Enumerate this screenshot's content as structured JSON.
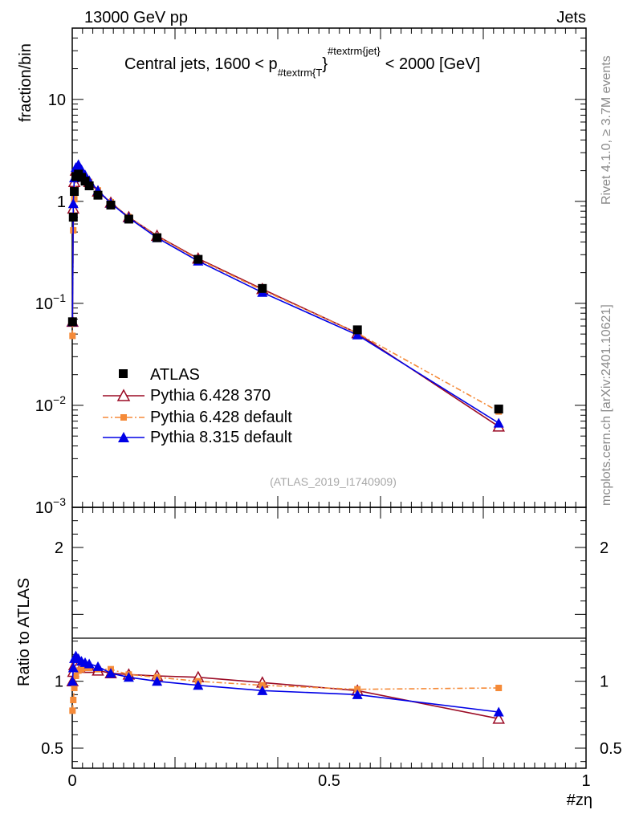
{
  "header": {
    "energy_label": "13000 GeV pp",
    "category_label": "Jets",
    "side_rivet": "Rivet 4.1.0, ≥ 3.7M events",
    "side_mcplots": "mcplots.cern.ch [arXiv:2401.10621]"
  },
  "chart_data": [
    {
      "type": "line",
      "panel": "main",
      "title": "Central jets, 1600 < p_{#textrm{T}}^{#textrm{jet}} < 2000 [GeV]",
      "title_parts": {
        "prefix": "Central jets, 1600 < p",
        "sub": "#textrm{T",
        "brace": "}",
        "sup": "#textrm{jet}",
        "suffix": "< 2000 [GeV]"
      },
      "ylabel": "fraction/bin",
      "xlabel": "#zη",
      "yscale": "log",
      "ylim": [
        0.001,
        50
      ],
      "xlim": [
        0,
        1
      ],
      "y_ticks": [
        {
          "value": 10,
          "label": "10"
        },
        {
          "value": 1,
          "label": "1"
        },
        {
          "value": 0.1,
          "label": "10^{−1}",
          "base": "10",
          "exp": "−1"
        },
        {
          "value": 0.01,
          "label": "10^{−2}",
          "base": "10",
          "exp": "−2"
        },
        {
          "value": 0.001,
          "label": "10^{−3}",
          "base": "10",
          "exp": "−3"
        }
      ],
      "watermark": "(ATLAS_2019_I1740909)",
      "legend_position": "lower-left",
      "series": [
        {
          "name": "ATLAS",
          "color": "#000000",
          "marker": "square",
          "x": [
            0.0005,
            0.002,
            0.004,
            0.007,
            0.012,
            0.018,
            0.025,
            0.033,
            0.05,
            0.075,
            0.11,
            0.165,
            0.245,
            0.37,
            0.555,
            0.83
          ],
          "y": [
            0.066,
            0.7,
            1.25,
            1.75,
            1.85,
            1.72,
            1.58,
            1.42,
            1.15,
            0.92,
            0.67,
            0.44,
            0.27,
            0.14,
            0.055,
            0.0092
          ]
        },
        {
          "name": "Pythia 6.428 370",
          "color": "#9b0b25",
          "marker": "triangle-open",
          "x": [
            0.0005,
            0.002,
            0.004,
            0.007,
            0.012,
            0.018,
            0.025,
            0.033,
            0.05,
            0.075,
            0.11,
            0.165,
            0.245,
            0.37,
            0.555,
            0.83
          ],
          "y": [
            0.066,
            0.85,
            1.55,
            2.0,
            2.1,
            1.95,
            1.75,
            1.55,
            1.25,
            0.97,
            0.7,
            0.46,
            0.275,
            0.138,
            0.051,
            0.0062
          ]
        },
        {
          "name": "Pythia 6.428 default",
          "color": "#f58a38",
          "marker": "square",
          "style": "dash-dot",
          "x": [
            0.0005,
            0.002,
            0.004,
            0.007,
            0.012,
            0.018,
            0.025,
            0.033,
            0.05,
            0.075,
            0.11,
            0.165,
            0.245,
            0.37,
            0.555,
            0.83
          ],
          "y": [
            0.048,
            0.52,
            1.05,
            1.75,
            1.95,
            1.85,
            1.7,
            1.55,
            1.28,
            0.98,
            0.7,
            0.455,
            0.27,
            0.135,
            0.051,
            0.0087
          ]
        },
        {
          "name": "Pythia 8.315 default",
          "color": "#0000e6",
          "marker": "triangle",
          "x": [
            0.0005,
            0.002,
            0.004,
            0.007,
            0.012,
            0.018,
            0.025,
            0.033,
            0.05,
            0.075,
            0.11,
            0.165,
            0.245,
            0.37,
            0.555,
            0.83
          ],
          "y": [
            0.066,
            0.95,
            1.7,
            2.15,
            2.3,
            2.05,
            1.82,
            1.6,
            1.28,
            0.96,
            0.69,
            0.44,
            0.26,
            0.128,
            0.049,
            0.0067
          ]
        }
      ]
    },
    {
      "type": "line",
      "panel": "ratio",
      "ylabel": "Ratio to ATLAS",
      "xlabel": "#zη",
      "ylim": [
        0.35,
        2.3
      ],
      "xlim": [
        0,
        1
      ],
      "y_ticks": [
        {
          "value": 0.5,
          "label": "0.5"
        },
        {
          "value": 1,
          "label": "1"
        },
        {
          "value": 2,
          "label": "2"
        }
      ],
      "x_ticks": [
        {
          "value": 0,
          "label": "0"
        },
        {
          "value": 0.5,
          "label": "0.5"
        },
        {
          "value": 1,
          "label": "1"
        }
      ],
      "series": [
        {
          "name": "Pythia 6.428 370",
          "color": "#9b0b25",
          "marker": "triangle-open",
          "x": [
            0.0005,
            0.002,
            0.004,
            0.007,
            0.012,
            0.018,
            0.025,
            0.033,
            0.05,
            0.075,
            0.11,
            0.165,
            0.245,
            0.37,
            0.555,
            0.83
          ],
          "y": [
            1.0,
            1.07,
            1.12,
            1.13,
            1.12,
            1.11,
            1.1,
            1.1,
            1.08,
            1.06,
            1.05,
            1.04,
            1.03,
            0.99,
            0.93,
            0.72
          ]
        },
        {
          "name": "Pythia 6.428 default",
          "color": "#f58a38",
          "marker": "square",
          "style": "dash-dot",
          "x": [
            0.0005,
            0.002,
            0.004,
            0.007,
            0.012,
            0.018,
            0.025,
            0.033,
            0.05,
            0.075,
            0.11,
            0.165,
            0.245,
            0.37,
            0.555,
            0.83
          ],
          "y": [
            0.78,
            0.86,
            0.95,
            1.04,
            1.08,
            1.09,
            1.1,
            1.1,
            1.09,
            1.09,
            1.05,
            1.03,
            1.0,
            0.97,
            0.94,
            0.95
          ]
        },
        {
          "name": "Pythia 8.315 default",
          "color": "#0000e6",
          "marker": "triangle",
          "x": [
            0.0005,
            0.002,
            0.004,
            0.007,
            0.012,
            0.018,
            0.025,
            0.033,
            0.05,
            0.075,
            0.11,
            0.165,
            0.245,
            0.37,
            0.555,
            0.83
          ],
          "y": [
            1.0,
            1.1,
            1.17,
            1.19,
            1.17,
            1.15,
            1.14,
            1.13,
            1.11,
            1.06,
            1.03,
            1.0,
            0.97,
            0.93,
            0.9,
            0.77
          ]
        }
      ]
    }
  ]
}
